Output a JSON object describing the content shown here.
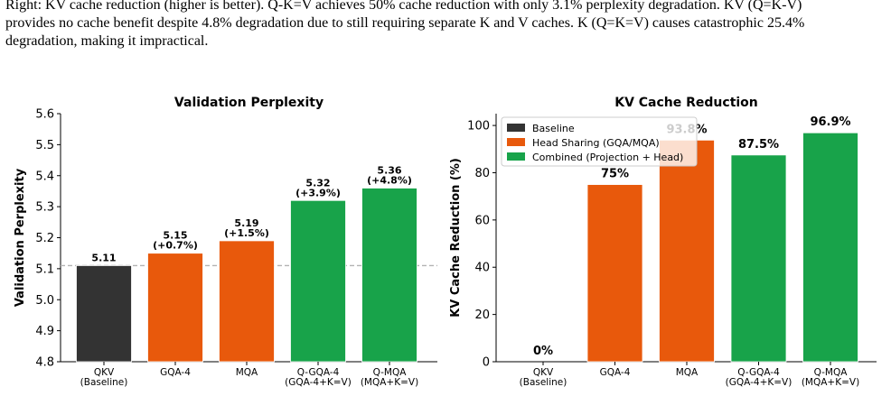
{
  "caption": {
    "lines": [
      "Right: KV cache reduction (higher is better). Q-K=V achieves 50% cache reduction with only 3.1% perplexity degradation. KV (Q=K-V)",
      "provides no cache benefit despite 4.8% degradation due to still requiring separate K and V caches. K (Q=K=V) causes catastrophic 25.4%",
      "degradation, making it impractical."
    ]
  },
  "colors": {
    "baseline": "#333333",
    "head_sharing": "#e8590c",
    "combined": "#18a34a",
    "reference_line": "#b3b3b3"
  },
  "chart_data": [
    {
      "type": "bar",
      "title": "Validation Perplexity",
      "xlabel": "",
      "ylabel": "Validation Perplexity",
      "ylim": [
        4.8,
        5.6
      ],
      "yticks": [
        "4.8",
        "4.9",
        "5.0",
        "5.1",
        "5.2",
        "5.3",
        "5.4",
        "5.5",
        "5.6"
      ],
      "categories": [
        "QKV\n(Baseline)",
        "GQA-4",
        "MQA",
        "Q-GQA-4\n(GQA-4+K=V)",
        "Q-MQA\n(MQA+K=V)"
      ],
      "values": [
        5.11,
        5.15,
        5.19,
        5.32,
        5.36
      ],
      "groups": [
        "baseline",
        "head_sharing",
        "head_sharing",
        "combined",
        "combined"
      ],
      "value_labels": [
        "5.11",
        "5.15\n(+0.7%)",
        "5.19\n(+1.5%)",
        "5.32\n(+3.9%)",
        "5.36\n(+4.8%)"
      ],
      "reference_line": 5.11,
      "grid": false
    },
    {
      "type": "bar",
      "title": "KV Cache Reduction",
      "xlabel": "",
      "ylabel": "KV Cache Reduction (%)",
      "ylim": [
        0,
        105
      ],
      "yticks": [
        "0",
        "20",
        "40",
        "60",
        "80",
        "100"
      ],
      "categories": [
        "QKV\n(Baseline)",
        "GQA-4",
        "MQA",
        "Q-GQA-4\n(GQA-4+K=V)",
        "Q-MQA\n(MQA+K=V)"
      ],
      "values": [
        0,
        75,
        93.8,
        87.5,
        96.9
      ],
      "groups": [
        "baseline",
        "head_sharing",
        "head_sharing",
        "combined",
        "combined"
      ],
      "value_labels": [
        "0%",
        "75%",
        "93.8%",
        "87.5%",
        "96.9%"
      ],
      "legend": {
        "placement": "top-left",
        "entries": [
          {
            "label": "Baseline",
            "group": "baseline"
          },
          {
            "label": "Head Sharing (GQA/MQA)",
            "group": "head_sharing"
          },
          {
            "label": "Combined (Projection + Head)",
            "group": "combined"
          }
        ]
      },
      "grid": false
    }
  ]
}
